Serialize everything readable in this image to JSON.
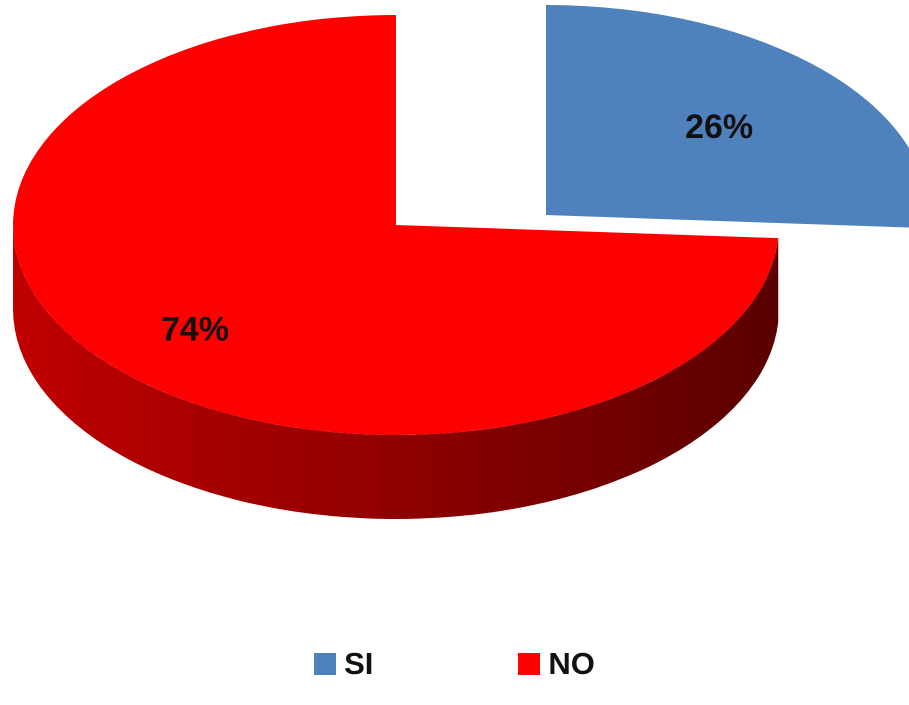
{
  "chart_data": {
    "type": "pie",
    "title": "",
    "series": [
      {
        "slices": [
          {
            "label": "SI",
            "value": 26,
            "display": "26%",
            "color": "#4f81bd",
            "side_color": "#1f3450"
          },
          {
            "label": "NO",
            "value": 74,
            "display": "74%",
            "color": "#ff0000",
            "side_color": "#8a0000"
          }
        ]
      }
    ],
    "exploded": "SI",
    "style": "3d",
    "legend_position": "bottom"
  }
}
